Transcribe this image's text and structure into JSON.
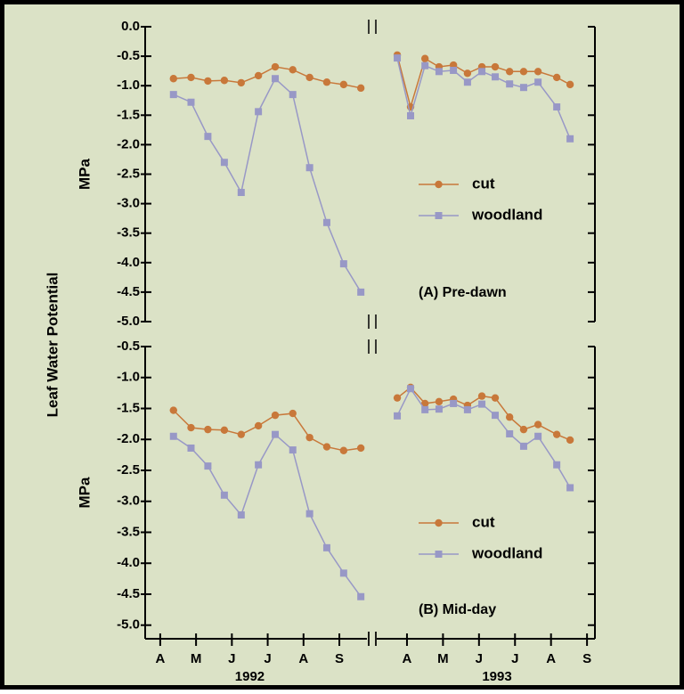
{
  "chart_data": {
    "type": "line",
    "ylabel": "Leaf Water Potential",
    "x": [
      4.37,
      4.86,
      5.33,
      5.79,
      6.26,
      6.74,
      7.21,
      7.7,
      8.17,
      8.65,
      9.12,
      9.6,
      15.73,
      16.1,
      16.5,
      16.89,
      17.29,
      17.68,
      18.08,
      18.45,
      18.85,
      19.24,
      19.64,
      20.16,
      20.53
    ],
    "segments": [
      {
        "label": "1992",
        "xlim": [
          3.58,
          9.77
        ],
        "xticks": [
          {
            "value": 4,
            "label": "A"
          },
          {
            "value": 5,
            "label": "M"
          },
          {
            "value": 6,
            "label": "J"
          },
          {
            "value": 7,
            "label": "J"
          },
          {
            "value": 8,
            "label": "A"
          },
          {
            "value": 9,
            "label": "S"
          }
        ]
      },
      {
        "label": "1993",
        "xlim": [
          15.16,
          21.22
        ],
        "xticks": [
          {
            "value": 16,
            "label": "A"
          },
          {
            "value": 17,
            "label": "M"
          },
          {
            "value": 18,
            "label": "J"
          },
          {
            "value": 19,
            "label": "J"
          },
          {
            "value": 20,
            "label": "A"
          },
          {
            "value": 21,
            "label": "S"
          }
        ]
      }
    ],
    "panels": [
      {
        "title": "(A) Pre-dawn",
        "axis_label": "MPa",
        "ylim": [
          -5,
          0
        ],
        "yticks": [
          {
            "value": 0,
            "label": "0.0"
          },
          -0.5,
          {
            "value": -1,
            "label": "-1.0"
          },
          -1.5,
          {
            "value": -2,
            "label": "-2.0"
          },
          -2.5,
          {
            "value": -3,
            "label": "-3.0"
          },
          -3.5,
          {
            "value": -4,
            "label": "-4.0"
          },
          -4.5,
          {
            "value": -5,
            "label": "-5.0"
          }
        ],
        "series": [
          {
            "name": "cut",
            "color": "#c8783a",
            "marker": "circle",
            "values": [
              -0.88,
              -0.86,
              -0.92,
              -0.91,
              -0.95,
              -0.83,
              -0.68,
              -0.73,
              -0.86,
              -0.94,
              -0.98,
              -1.04,
              -0.48,
              -1.36,
              -0.54,
              -0.68,
              -0.65,
              -0.79,
              -0.68,
              -0.68,
              -0.76,
              -0.76,
              -0.76,
              -0.86,
              -0.98
            ]
          },
          {
            "name": "woodland",
            "color": "#9898c6",
            "marker": "square",
            "values": [
              -1.15,
              -1.28,
              -1.86,
              -2.3,
              -2.81,
              -1.44,
              -0.88,
              -1.15,
              -2.39,
              -3.32,
              -4.02,
              -4.5,
              -0.53,
              -1.51,
              -0.66,
              -0.76,
              -0.74,
              -0.94,
              -0.76,
              -0.85,
              -0.97,
              -1.03,
              -0.94,
              -1.36,
              -1.9
            ]
          }
        ]
      },
      {
        "title": "(B) Mid-day",
        "axis_label": "MPa",
        "ylim": [
          -5.22,
          -0.5
        ],
        "yticks": [
          -0.5,
          {
            "value": -1,
            "label": "-1.0"
          },
          -1.5,
          {
            "value": -2,
            "label": "-2.0"
          },
          -2.5,
          {
            "value": -3,
            "label": "-3.0"
          },
          -3.5,
          {
            "value": -4,
            "label": "-4.0"
          },
          -4.5,
          {
            "value": -5,
            "label": "-5.0"
          }
        ],
        "series": [
          {
            "name": "cut",
            "color": "#c8783a",
            "marker": "circle",
            "values": [
              -1.53,
              -1.81,
              -1.84,
              -1.85,
              -1.92,
              -1.78,
              -1.61,
              -1.58,
              -1.97,
              -2.12,
              -2.18,
              -2.14,
              -1.33,
              -1.16,
              -1.42,
              -1.39,
              -1.35,
              -1.45,
              -1.3,
              -1.33,
              -1.64,
              -1.84,
              -1.76,
              -1.92,
              -2.01
            ]
          },
          {
            "name": "woodland",
            "color": "#9898c6",
            "marker": "square",
            "values": [
              -1.95,
              -2.14,
              -2.43,
              -2.9,
              -3.22,
              -2.41,
              -1.92,
              -2.17,
              -3.2,
              -3.75,
              -4.16,
              -4.54,
              -1.62,
              -1.18,
              -1.52,
              -1.51,
              -1.42,
              -1.52,
              -1.43,
              -1.61,
              -1.91,
              -2.11,
              -1.95,
              -2.41,
              -2.78
            ]
          }
        ]
      }
    ]
  }
}
